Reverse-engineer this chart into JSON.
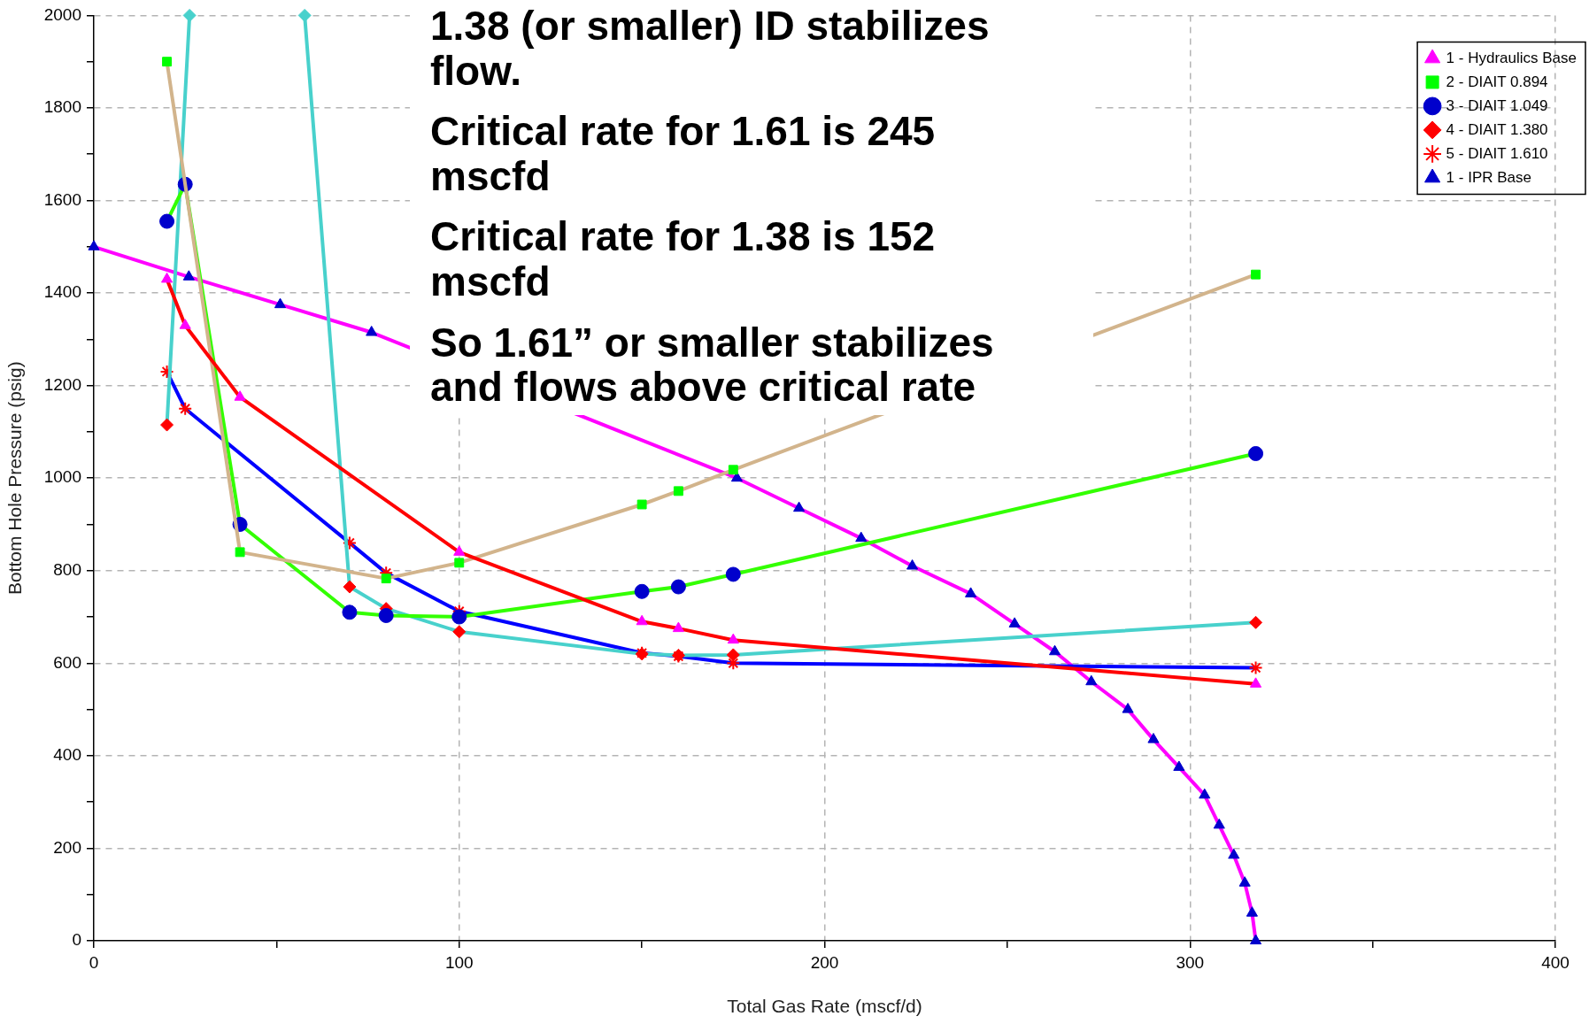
{
  "chart_data": {
    "type": "line",
    "xlabel": "Total Gas Rate (mscf/d)",
    "ylabel": "Bottom Hole Pressure (psig)",
    "xlim": [
      0,
      400
    ],
    "ylim": [
      0,
      2000
    ],
    "xticks": [
      0,
      {
        "value": 50,
        "label": null
      },
      100,
      {
        "value": 150,
        "label": null
      },
      200,
      {
        "value": 250,
        "label": null
      },
      300,
      {
        "value": 350,
        "label": null
      },
      400
    ],
    "yticks": [
      0,
      {
        "value": 100,
        "label": null
      },
      200,
      {
        "value": 300,
        "label": null
      },
      400,
      {
        "value": 500,
        "label": null
      },
      600,
      {
        "value": 700,
        "label": null
      },
      800,
      {
        "value": 900,
        "label": null
      },
      1000,
      {
        "value": 1100,
        "label": null
      },
      1200,
      {
        "value": 1300,
        "label": null
      },
      1400,
      {
        "value": 1500,
        "label": null
      },
      1600,
      {
        "value": 1700,
        "label": null
      },
      1800,
      {
        "value": 1900,
        "label": null
      },
      2000
    ],
    "grid": true,
    "legend": "top right",
    "annotations": [
      "1.38 (or smaller) ID stabilizes flow.",
      "Critical rate for 1.61 is 245 mscfd",
      "Critical rate for 1.38 is 152 mscfd",
      "So 1.61” or smaller stabilizes and flows above critical rate"
    ],
    "series": [
      {
        "name": "1 - Hydraulics Base",
        "color": "#ff0000",
        "marker": "triangle",
        "x": [
          20,
          25,
          40,
          100,
          150,
          160,
          175,
          318
        ],
        "values": [
          1430,
          1330,
          1175,
          840,
          690,
          675,
          650,
          555
        ],
        "colors": [
          "#ff00ff",
          "#ff00ff",
          "#ff00ff",
          "#ff00ff",
          "#ff00ff",
          "#ff00ff",
          "#ff00ff",
          "#ff00ff"
        ]
      },
      {
        "name": "2 - DIAIT 0.894",
        "color": "#d2b48c",
        "marker": "square",
        "x": [
          20,
          40,
          80,
          100,
          150,
          160,
          175,
          318
        ],
        "values": [
          1900,
          840,
          783,
          817,
          943,
          972,
          1018,
          1440
        ],
        "colors": [
          "#00ff00",
          "#00ff00",
          "#00ff00",
          "#00ff00",
          "#00ff00",
          "#00ff00",
          "#00ff00",
          "#00ff00"
        ]
      },
      {
        "name": "3 - DIAIT 1.049",
        "color": "#33ff00",
        "marker": "circle",
        "x": [
          20,
          25,
          40,
          70,
          80,
          100,
          150,
          160,
          175,
          318
        ],
        "values": [
          1555,
          1635,
          900,
          710,
          703,
          700,
          755,
          765,
          792,
          1053
        ],
        "colors": [
          "#0000cc",
          "#0000cc",
          "#0000cc",
          "#0000cc",
          "#0000cc",
          "#0000cc",
          "#0000cc",
          "#0000cc",
          "#0000cc",
          "#0000cc"
        ]
      },
      {
        "name": "4 - DIAIT 1.380",
        "color": "#48d1cc",
        "marker": "diamond",
        "x": [
          20,
          26.2,
          40,
          57.7,
          70,
          80,
          100,
          150,
          160,
          175,
          318
        ],
        "values": [
          1115,
          2000,
          null,
          2000,
          765,
          718,
          668,
          620,
          617,
          618,
          688
        ],
        "colors": [
          "#ff0000",
          "#48d1cc",
          "#ff0000",
          "#48d1cc",
          "#ff0000",
          "#ff0000",
          "#ff0000",
          "#ff0000",
          "#ff0000",
          "#ff0000",
          "#ff0000"
        ]
      },
      {
        "name": "5 - DIAIT 1.610",
        "color": "#0000ff",
        "marker": "cross",
        "x": [
          20,
          25,
          70,
          80,
          100,
          150,
          160,
          175,
          318
        ],
        "values": [
          1230,
          1150,
          860,
          795,
          712,
          622,
          615,
          600,
          590
        ],
        "colors": [
          "#ff0000",
          "#ff0000",
          "#ff0000",
          "#ff0000",
          "#ff0000",
          "#ff0000",
          "#ff0000",
          "#ff0000",
          "#ff0000"
        ]
      },
      {
        "name": "1 - IPR Base",
        "color": "#ff00ff",
        "marker": "triangle",
        "x": [
          0,
          26,
          51,
          76,
          176,
          193,
          210,
          224,
          240,
          252,
          263,
          273,
          283,
          290,
          297,
          304,
          308,
          312,
          315,
          317,
          318
        ],
        "values": [
          1500,
          1435,
          1375,
          1315,
          1000,
          935,
          870,
          810,
          750,
          685,
          625,
          560,
          500,
          435,
          375,
          315,
          250,
          185,
          125,
          60,
          0
        ],
        "colors": [
          "#0000cc",
          "#0000cc",
          "#0000cc",
          "#0000cc",
          "#0000cc",
          "#0000cc",
          "#0000cc",
          "#0000cc",
          "#0000cc",
          "#0000cc",
          "#0000cc",
          "#0000cc",
          "#0000cc",
          "#0000cc",
          "#0000cc",
          "#0000cc",
          "#0000cc",
          "#0000cc",
          "#0000cc",
          "#0000cc",
          "#0000cc"
        ]
      }
    ]
  }
}
